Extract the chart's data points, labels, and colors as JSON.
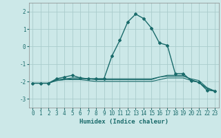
{
  "x": [
    0,
    1,
    2,
    3,
    4,
    5,
    6,
    7,
    8,
    9,
    10,
    11,
    12,
    13,
    14,
    15,
    16,
    17,
    18,
    19,
    20,
    21,
    22,
    23
  ],
  "line1": [
    -2.1,
    -2.1,
    -2.1,
    -1.85,
    -1.75,
    -1.65,
    -1.8,
    -1.85,
    -1.85,
    -1.85,
    -0.55,
    0.35,
    1.4,
    1.85,
    1.6,
    1.05,
    0.2,
    0.07,
    -1.55,
    -1.55,
    -1.95,
    -2.05,
    -2.5,
    -2.55
  ],
  "line2": [
    -2.1,
    -2.1,
    -2.1,
    -1.9,
    -1.85,
    -1.8,
    -1.8,
    -1.85,
    -1.9,
    -1.9,
    -1.9,
    -1.9,
    -1.9,
    -1.9,
    -1.9,
    -1.9,
    -1.75,
    -1.65,
    -1.65,
    -1.65,
    -1.9,
    -2.05,
    -2.4,
    -2.55
  ],
  "line3": [
    -2.1,
    -2.1,
    -2.1,
    -1.95,
    -1.9,
    -1.9,
    -1.9,
    -1.95,
    -2.0,
    -2.0,
    -2.0,
    -2.0,
    -2.0,
    -2.0,
    -2.0,
    -2.0,
    -1.9,
    -1.8,
    -1.8,
    -1.8,
    -1.95,
    -2.05,
    -2.4,
    -2.55
  ],
  "line4": [
    -2.1,
    -2.1,
    -2.1,
    -1.95,
    -1.9,
    -1.85,
    -1.85,
    -1.85,
    -1.85,
    -1.85,
    -1.85,
    -1.85,
    -1.85,
    -1.85,
    -1.85,
    -1.85,
    -1.75,
    -1.7,
    -1.7,
    -1.7,
    -1.85,
    -1.95,
    -2.35,
    -2.55
  ],
  "bg_color": "#cce8e8",
  "grid_color": "#aacccc",
  "line_color": "#1a6b6b",
  "xlabel": "Humidex (Indice chaleur)",
  "ylim": [
    -3.5,
    2.5
  ],
  "xlim": [
    -0.5,
    23.5
  ],
  "yticks": [
    -3,
    -2,
    -1,
    0,
    1,
    2
  ],
  "xticks": [
    0,
    1,
    2,
    3,
    4,
    5,
    6,
    7,
    8,
    9,
    10,
    11,
    12,
    13,
    14,
    15,
    16,
    17,
    18,
    19,
    20,
    21,
    22,
    23
  ]
}
